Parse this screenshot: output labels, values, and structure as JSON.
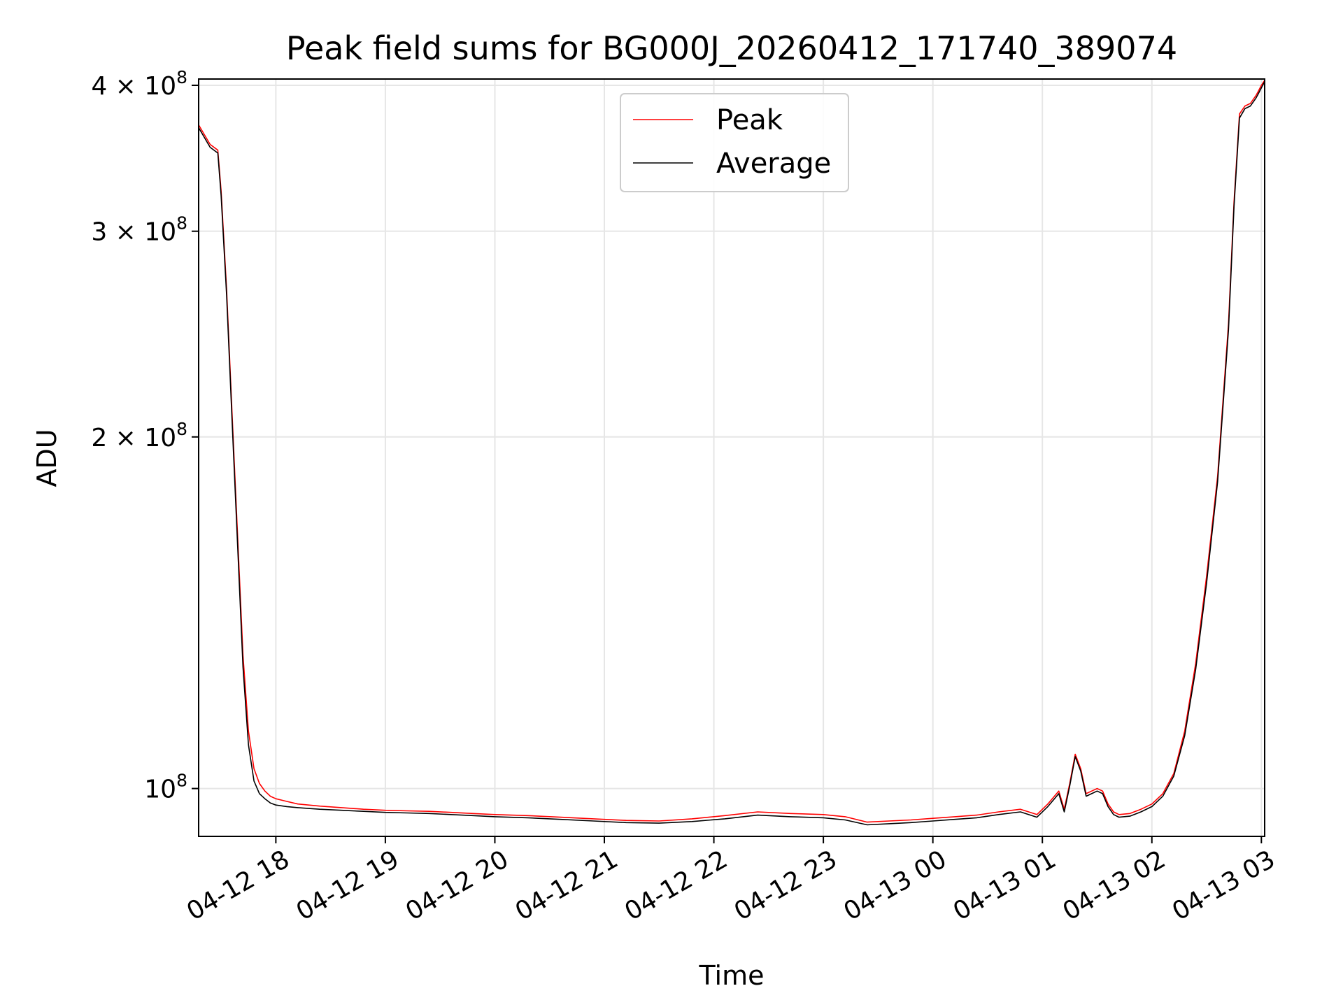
{
  "chart_data": {
    "type": "line",
    "title": "Peak field sums for BG000J_20260412_171740_389074",
    "xlabel": "Time",
    "ylabel": "ADU",
    "yscale": "log",
    "ylim": [
      91000000,
      405000000
    ],
    "xlim_hours": [
      17.295,
      27.03
    ],
    "grid": true,
    "legend_position": "upper center",
    "x_ticks": [
      {
        "label": "04-12 18",
        "hour": 18
      },
      {
        "label": "04-12 19",
        "hour": 19
      },
      {
        "label": "04-12 20",
        "hour": 20
      },
      {
        "label": "04-12 21",
        "hour": 21
      },
      {
        "label": "04-12 22",
        "hour": 22
      },
      {
        "label": "04-12 23",
        "hour": 23
      },
      {
        "label": "04-13 00",
        "hour": 24
      },
      {
        "label": "04-13 01",
        "hour": 25
      },
      {
        "label": "04-13 02",
        "hour": 26
      },
      {
        "label": "04-13 03",
        "hour": 27
      }
    ],
    "y_ticks": [
      {
        "mantissa": "4",
        "exponent": "8",
        "value": 400000000
      },
      {
        "mantissa": "3",
        "exponent": "8",
        "value": 300000000
      },
      {
        "mantissa": "2",
        "exponent": "8",
        "value": 200000000
      },
      {
        "mantissa": "",
        "exponent": "8",
        "value": 100000000
      }
    ],
    "tick_multiply": "×",
    "tick_base": "10",
    "x_hours": [
      17.295,
      17.4,
      17.47,
      17.5,
      17.55,
      17.6,
      17.65,
      17.7,
      17.75,
      17.8,
      17.85,
      17.9,
      17.95,
      18.0,
      18.1,
      18.2,
      18.4,
      18.6,
      18.8,
      19.0,
      19.2,
      19.4,
      19.6,
      19.8,
      20.0,
      20.3,
      20.6,
      20.9,
      21.2,
      21.5,
      21.8,
      22.1,
      22.4,
      22.7,
      23.0,
      23.2,
      23.4,
      23.6,
      23.8,
      24.0,
      24.2,
      24.4,
      24.6,
      24.8,
      24.95,
      25.05,
      25.15,
      25.2,
      25.25,
      25.3,
      25.35,
      25.4,
      25.45,
      25.5,
      25.55,
      25.6,
      25.65,
      25.7,
      25.8,
      25.9,
      26.0,
      26.1,
      26.2,
      26.3,
      26.4,
      26.5,
      26.6,
      26.7,
      26.75,
      26.8,
      26.85,
      26.9,
      26.95,
      26.97,
      27.0,
      27.03
    ],
    "series": [
      {
        "name": "Peak",
        "color": "#ff0000",
        "values": [
          370000000,
          356000000,
          352000000,
          325000000,
          268000000,
          210000000,
          165000000,
          130000000,
          112000000,
          104000000,
          101000000,
          99500000,
          98500000,
          98000000,
          97500000,
          97000000,
          96600000,
          96300000,
          96000000,
          95800000,
          95700000,
          95600000,
          95400000,
          95200000,
          95000000,
          94800000,
          94500000,
          94200000,
          93900000,
          93800000,
          94200000,
          94800000,
          95500000,
          95200000,
          95000000,
          94600000,
          93600000,
          93800000,
          94000000,
          94300000,
          94600000,
          94900000,
          95500000,
          96000000,
          95000000,
          97000000,
          99500000,
          96000000,
          101000000,
          107000000,
          104000000,
          99000000,
          99500000,
          100000000,
          99500000,
          97000000,
          95500000,
          95000000,
          95200000,
          96000000,
          97000000,
          99000000,
          103000000,
          112000000,
          128000000,
          152000000,
          185000000,
          250000000,
          318000000,
          378000000,
          384000000,
          386000000,
          392000000,
          395000000,
          400000000,
          404000000
        ]
      },
      {
        "name": "Average",
        "color": "#000000",
        "values": [
          368000000,
          354000000,
          350000000,
          322000000,
          265000000,
          207000000,
          162000000,
          127000000,
          109000000,
          101500000,
          99000000,
          98000000,
          97200000,
          96800000,
          96500000,
          96300000,
          96000000,
          95800000,
          95600000,
          95400000,
          95300000,
          95200000,
          95000000,
          94800000,
          94600000,
          94400000,
          94100000,
          93800000,
          93500000,
          93400000,
          93700000,
          94200000,
          94900000,
          94600000,
          94400000,
          94000000,
          93100000,
          93300000,
          93500000,
          93800000,
          94100000,
          94400000,
          95000000,
          95500000,
          94500000,
          96500000,
          99000000,
          95500000,
          100500000,
          106500000,
          103500000,
          98500000,
          99000000,
          99500000,
          99000000,
          96500000,
          95000000,
          94500000,
          94700000,
          95500000,
          96500000,
          98500000,
          102500000,
          111000000,
          126500000,
          150000000,
          183000000,
          247000000,
          315000000,
          375000000,
          382000000,
          384000000,
          390000000,
          393000000,
          398000000,
          403000000
        ]
      }
    ]
  }
}
